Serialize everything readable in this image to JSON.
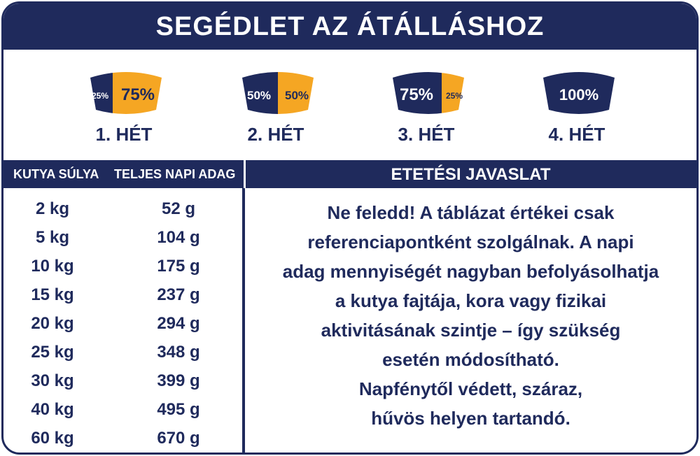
{
  "header": {
    "title": "SEGÉDLET AZ ÁTÁLLÁSHOZ"
  },
  "steps": [
    {
      "old": "25%",
      "new": "75%",
      "label": "1. HÉT"
    },
    {
      "old": "50%",
      "new": "50%",
      "label": "2. HÉT"
    },
    {
      "old": "75%",
      "new": "25%",
      "label": "3. HÉT"
    },
    {
      "old": "100%",
      "label": "4. HÉT"
    }
  ],
  "table": {
    "columns": [
      "KUTYA SÚLYA",
      "TELJES NAPI ADAG"
    ],
    "rows": [
      [
        "2 kg",
        "52 g"
      ],
      [
        "5 kg",
        "104 g"
      ],
      [
        "10 kg",
        "175 g"
      ],
      [
        "15 kg",
        "237 g"
      ],
      [
        "20 kg",
        "294 g"
      ],
      [
        "25 kg",
        "348 g"
      ],
      [
        "30 kg",
        "399 g"
      ],
      [
        "40 kg",
        "495 g"
      ],
      [
        "60 kg",
        "670 g"
      ]
    ]
  },
  "advice": {
    "title": "ETETÉSI JAVASLAT",
    "lines": [
      "Ne feledd! A táblázat értékei csak",
      "referenciapontként szolgálnak. A napi",
      "adag mennyiségét nagyban befolyásolhatja",
      "a kutya fajtája, kora vagy fizikai",
      "aktivitásának szintje – így szükség",
      "esetén módosítható.",
      "Napfénytől védett, száraz,",
      "hűvös helyen tartandó."
    ]
  }
}
